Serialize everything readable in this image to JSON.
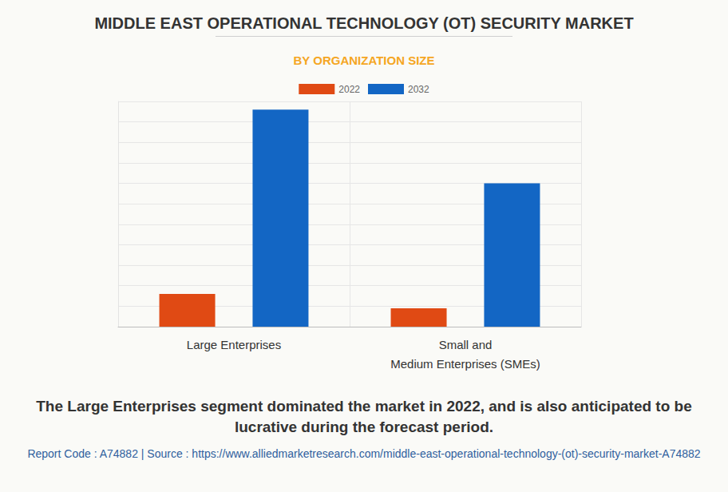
{
  "chart_data": {
    "type": "bar",
    "title": "MIDDLE EAST OPERATIONAL TECHNOLOGY (OT) SECURITY MARKET",
    "subtitle": "BY ORGANIZATION SIZE",
    "categories": [
      "Large Enterprises",
      "Small and\nMedium Enterprises (SMEs)"
    ],
    "series": [
      {
        "name": "2022",
        "color": "#e04a14",
        "values": [
          1.6,
          0.9
        ]
      },
      {
        "name": "2032",
        "color": "#1366c4",
        "values": [
          10.6,
          7.0
        ]
      }
    ],
    "ylim": [
      0,
      11
    ],
    "yticks": [
      0,
      1,
      2,
      3,
      4,
      5,
      6,
      7,
      8,
      9,
      10,
      11
    ],
    "grid": true,
    "legend": "top",
    "tick_labels": "x",
    "caption": "The Large Enterprises segment dominated the market in 2022, and is also anticipated to be lucrative during the forecast period.",
    "source": "Report Code : A74882  |  Source : https://www.alliedmarketresearch.com/middle-east-operational-technology-(ot)-security-market-A74882"
  }
}
